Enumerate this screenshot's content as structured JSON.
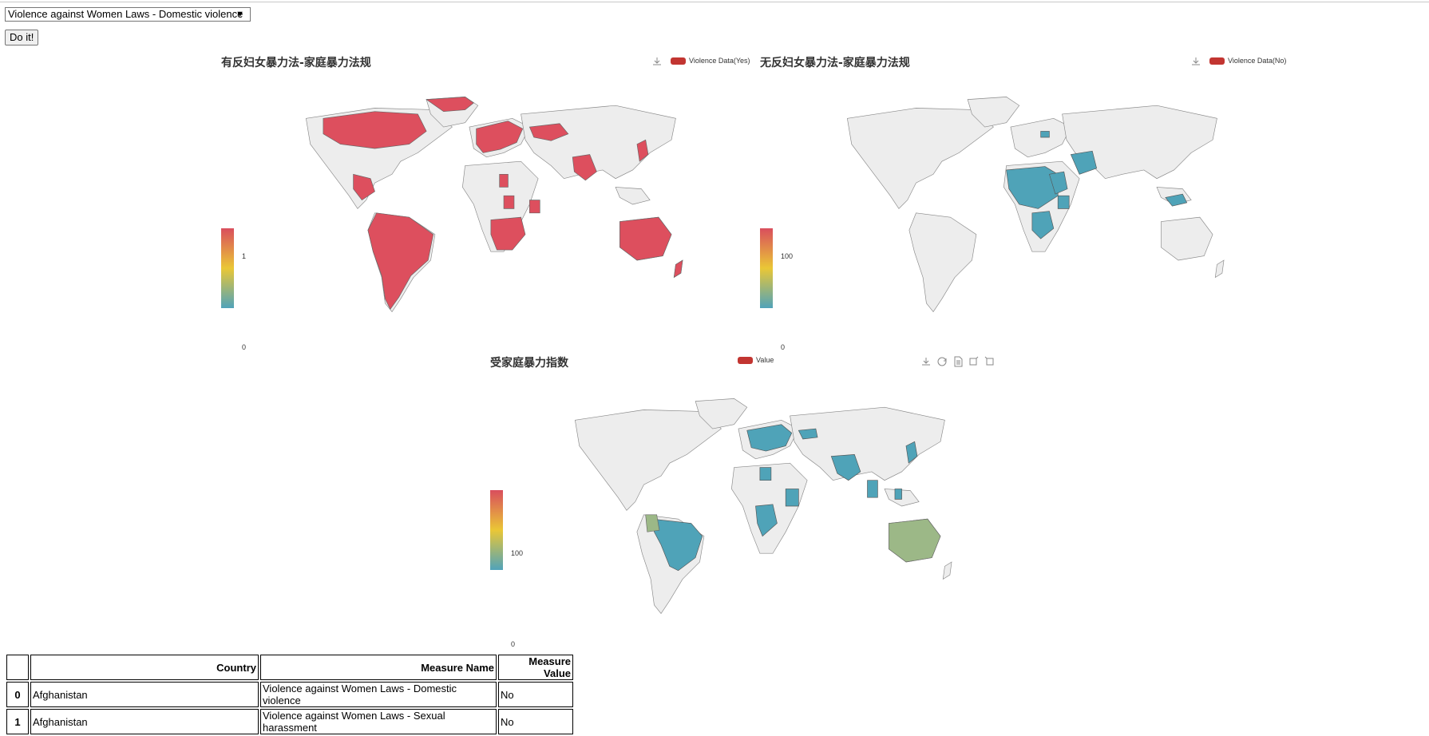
{
  "controls": {
    "select_value": "Violence against Women Laws - Domestic violence",
    "select_arrow": "▼",
    "button_label": "Do it!"
  },
  "charts": [
    {
      "title": "有反妇女暴力法-家庭暴力法规",
      "legend": "Violence Data(Yes)",
      "visualmap": {
        "max": "1",
        "min": "0"
      },
      "highlight_color": "#dd4f5e"
    },
    {
      "title": "无反妇女暴力法-家庭暴力法规",
      "legend": "Violence Data(No)",
      "visualmap": {
        "max": "100",
        "min": "0"
      },
      "highlight_color": "#4fa3b8"
    },
    {
      "title": "受家庭暴力指数",
      "legend": "Value",
      "visualmap": {
        "max": "100",
        "min": "0"
      },
      "highlight_color": "#4fa3b8"
    }
  ],
  "toolbox_icons": [
    "download-icon",
    "refresh-icon",
    "data-view-icon",
    "zoom-icon",
    "zoom-reset-icon"
  ],
  "table": {
    "headers": [
      "",
      "Country",
      "Measure Name",
      "Measure Value"
    ],
    "rows": [
      {
        "index": "0",
        "country": "Afghanistan",
        "measure_name": "Violence against Women Laws - Domestic violence",
        "measure_value": "No"
      },
      {
        "index": "1",
        "country": "Afghanistan",
        "measure_name": "Violence against Women Laws - Sexual harassment",
        "measure_value": "No"
      }
    ]
  },
  "colors": {
    "red": "#dd4f5e",
    "blue": "#4fa3b8",
    "green": "#9cb887",
    "land": "#ededed",
    "legend_swatch": "#c23531"
  }
}
